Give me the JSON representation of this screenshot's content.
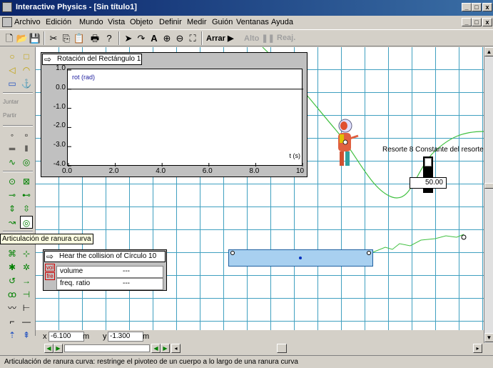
{
  "window": {
    "title": "Interactive Physics - [Sin título1]",
    "controls": [
      "_",
      "□",
      "x"
    ],
    "doc_controls": [
      "_",
      "□",
      "x"
    ]
  },
  "menu": [
    "Archivo",
    "Edición",
    "Mundo",
    "Vista",
    "Objeto",
    "Definir",
    "Medir",
    "Guión",
    "Ventanas",
    "Ayuda"
  ],
  "toolbar": {
    "run_label": "Arrar",
    "stop_label": "Alto",
    "reset_label": "Reaj."
  },
  "palette": {
    "join_label": "Juntar",
    "split_label": "Partir",
    "tooltip": "Articulación de ranura curva"
  },
  "graph": {
    "title": "Rotación del Rectángulo 1",
    "series_label": "rot (rad)",
    "x_unit": "t (s)",
    "chart_data": {
      "type": "line",
      "xlabel": "t (s)",
      "ylabel": "rot (rad)",
      "xlim": [
        0,
        10
      ],
      "ylim": [
        -4,
        1
      ],
      "yticks": [
        "1.0",
        "0.0",
        "-1.0",
        "-2.0",
        "-3.0",
        "-4.0"
      ],
      "xticks": [
        "0.0",
        "2.0",
        "4.0",
        "6.0",
        "8.0",
        "10"
      ],
      "series": []
    }
  },
  "meter": {
    "title": "Hear the collision of Círculo 10",
    "rows": [
      {
        "label": "volume",
        "value": "---"
      },
      {
        "label": "freq. ratio",
        "value": "---"
      }
    ]
  },
  "spring": {
    "label": "Resorte 8 Constante del resorte",
    "value": "50.00"
  },
  "coords": {
    "x_label": "x",
    "x_value": "-6.100",
    "x_unit": "m",
    "y_label": "y",
    "y_value": "-1.300",
    "y_unit": "m"
  },
  "status": "Articulación de ranura curva: restringe el pivoteo de un cuerpo a lo largo de una ranura curva",
  "colors": {
    "titlebar": "#0a246a",
    "grid": "#40a0c0",
    "curve": "#40c040",
    "rectangle": "#a8d0f0"
  }
}
